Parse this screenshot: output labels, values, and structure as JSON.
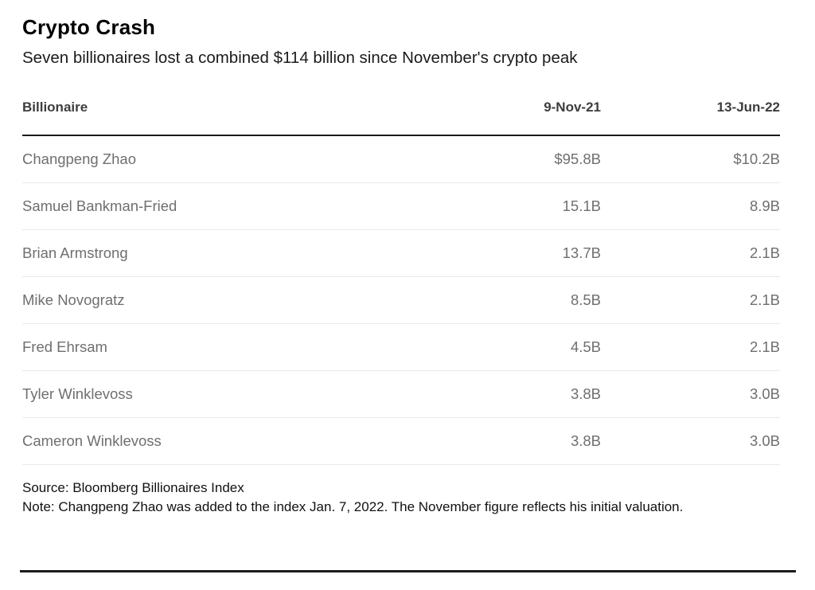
{
  "header": {
    "title": "Crypto Crash",
    "subtitle": "Seven billionaires lost a combined $114 billion since November's crypto peak"
  },
  "table": {
    "columns": [
      "Billionaire",
      "9-Nov-21",
      "13-Jun-22"
    ],
    "rows": [
      {
        "name": "Changpeng Zhao",
        "nov": "$95.8B",
        "jun": "$10.2B"
      },
      {
        "name": "Samuel Bankman-Fried",
        "nov": "15.1B",
        "jun": "8.9B"
      },
      {
        "name": "Brian Armstrong",
        "nov": "13.7B",
        "jun": "2.1B"
      },
      {
        "name": "Mike Novogratz",
        "nov": "8.5B",
        "jun": "2.1B"
      },
      {
        "name": "Fred Ehrsam",
        "nov": "4.5B",
        "jun": "2.1B"
      },
      {
        "name": "Tyler Winklevoss",
        "nov": "3.8B",
        "jun": "3.0B"
      },
      {
        "name": "Cameron Winklevoss",
        "nov": "3.8B",
        "jun": "3.0B"
      }
    ]
  },
  "footer": {
    "source": "Source: Bloomberg Billionaires Index",
    "note": "Note: Changpeng Zhao was added to the index Jan. 7, 2022. The November figure reflects his initial valuation."
  },
  "chart_data": {
    "type": "table",
    "title": "Crypto Crash",
    "subtitle": "Seven billionaires lost a combined $114 billion since November's crypto peak",
    "categories": [
      "Changpeng Zhao",
      "Samuel Bankman-Fried",
      "Brian Armstrong",
      "Mike Novogratz",
      "Fred Ehrsam",
      "Tyler Winklevoss",
      "Cameron Winklevoss"
    ],
    "series": [
      {
        "name": "9-Nov-21",
        "values": [
          95.8,
          15.1,
          13.7,
          8.5,
          4.5,
          3.8,
          3.8
        ]
      },
      {
        "name": "13-Jun-22",
        "values": [
          10.2,
          8.9,
          2.1,
          2.1,
          2.1,
          3.0,
          3.0
        ]
      }
    ],
    "units": "USD billions",
    "source": "Bloomberg Billionaires Index"
  },
  "colors": {
    "background": "#ffffff",
    "title_text": "#000000",
    "header_text": "#3d3d3d",
    "row_text": "#6f6f6f",
    "footer_text": "#111111",
    "rule": "#1a1a1a",
    "hairline": "#e9e9e9"
  }
}
